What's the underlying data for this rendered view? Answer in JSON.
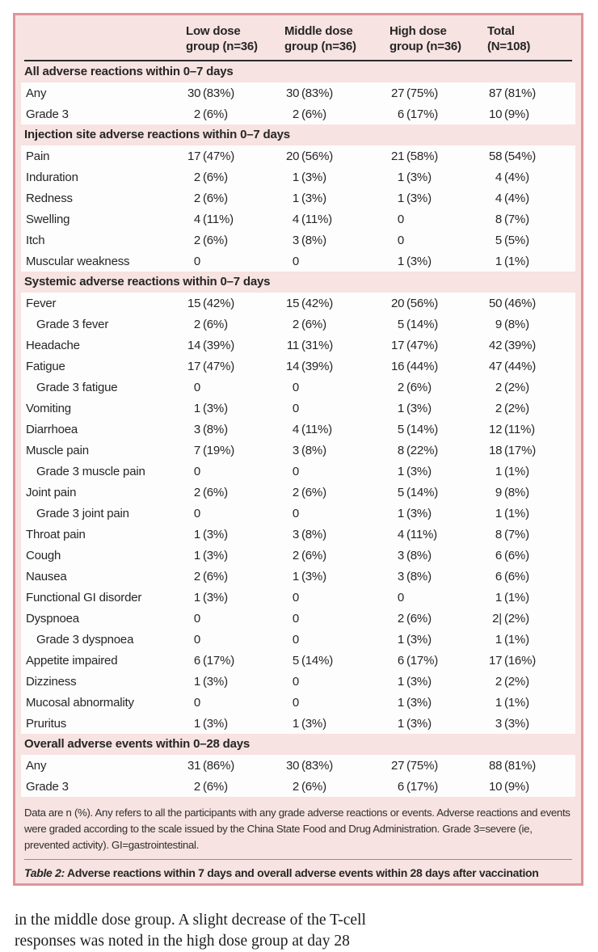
{
  "table": {
    "border_color": "#df949b",
    "bg_color": "#f7e3e1",
    "row_bg": "#fdfdfd",
    "header": {
      "cols": [
        {
          "line1": "Low dose",
          "line2": "group (n=36)"
        },
        {
          "line1": "Middle dose",
          "line2": "group (n=36)"
        },
        {
          "line1": "High dose",
          "line2": "group (n=36)"
        },
        {
          "line1": "Total",
          "line2": "(N=108)"
        }
      ]
    },
    "sections": [
      {
        "title": "All adverse reactions within 0–7 days",
        "rows": [
          {
            "label": "Any",
            "indent": false,
            "values": [
              "30 (83%)",
              "30 (83%)",
              "27 (75%)",
              "87 (81%)"
            ]
          },
          {
            "label": "Grade 3",
            "indent": false,
            "values": [
              "2 (6%)",
              "2 (6%)",
              "6 (17%)",
              "10 (9%)"
            ]
          }
        ]
      },
      {
        "title": "Injection site adverse reactions within 0–7 days",
        "rows": [
          {
            "label": "Pain",
            "indent": false,
            "values": [
              "17 (47%)",
              "20 (56%)",
              "21 (58%)",
              "58 (54%)"
            ]
          },
          {
            "label": "Induration",
            "indent": false,
            "values": [
              "2 (6%)",
              "1 (3%)",
              "1 (3%)",
              "4 (4%)"
            ]
          },
          {
            "label": "Redness",
            "indent": false,
            "values": [
              "2 (6%)",
              "1 (3%)",
              "1 (3%)",
              "4 (4%)"
            ]
          },
          {
            "label": "Swelling",
            "indent": false,
            "values": [
              "4 (11%)",
              "4 (11%)",
              "0",
              "8 (7%)"
            ]
          },
          {
            "label": "Itch",
            "indent": false,
            "values": [
              "2 (6%)",
              "3 (8%)",
              "0",
              "5 (5%)"
            ]
          },
          {
            "label": "Muscular weakness",
            "indent": false,
            "values": [
              "0",
              "0",
              "1 (3%)",
              "1 (1%)"
            ]
          }
        ]
      },
      {
        "title": "Systemic adverse reactions within 0–7 days",
        "rows": [
          {
            "label": "Fever",
            "indent": false,
            "values": [
              "15 (42%)",
              "15 (42%)",
              "20 (56%)",
              "50 (46%)"
            ]
          },
          {
            "label": "Grade 3 fever",
            "indent": true,
            "values": [
              "2 (6%)",
              "2 (6%)",
              "5 (14%)",
              "9 (8%)"
            ]
          },
          {
            "label": "Headache",
            "indent": false,
            "values": [
              "14 (39%)",
              "11 (31%)",
              "17 (47%)",
              "42 (39%)"
            ]
          },
          {
            "label": "Fatigue",
            "indent": false,
            "values": [
              "17 (47%)",
              "14 (39%)",
              "16 (44%)",
              "47 (44%)"
            ]
          },
          {
            "label": "Grade 3 fatigue",
            "indent": true,
            "values": [
              "0",
              "0",
              "2 (6%)",
              "2 (2%)"
            ]
          },
          {
            "label": "Vomiting",
            "indent": false,
            "values": [
              "1 (3%)",
              "0",
              "1 (3%)",
              "2 (2%)"
            ]
          },
          {
            "label": "Diarrhoea",
            "indent": false,
            "values": [
              "3 (8%)",
              "4 (11%)",
              "5 (14%)",
              "12 (11%)"
            ]
          },
          {
            "label": "Muscle pain",
            "indent": false,
            "values": [
              "7 (19%)",
              "3 (8%)",
              "8 (22%)",
              "18 (17%)"
            ]
          },
          {
            "label": "Grade 3 muscle pain",
            "indent": true,
            "values": [
              "0",
              "0",
              "1 (3%)",
              "1 (1%)"
            ]
          },
          {
            "label": "Joint pain",
            "indent": false,
            "values": [
              "2 (6%)",
              "2 (6%)",
              "5 (14%)",
              "9 (8%)"
            ]
          },
          {
            "label": "Grade 3 joint pain",
            "indent": true,
            "values": [
              "0",
              "0",
              "1 (3%)",
              "1 (1%)"
            ]
          },
          {
            "label": "Throat pain",
            "indent": false,
            "values": [
              "1 (3%)",
              "3 (8%)",
              "4 (11%)",
              "8 (7%)"
            ]
          },
          {
            "label": "Cough",
            "indent": false,
            "values": [
              "1 (3%)",
              "2 (6%)",
              "3 (8%)",
              "6 (6%)"
            ]
          },
          {
            "label": "Nausea",
            "indent": false,
            "values": [
              "2 (6%)",
              "1 (3%)",
              "3 (8%)",
              "6 (6%)"
            ]
          },
          {
            "label": "Functional GI disorder",
            "indent": false,
            "values": [
              "1 (3%)",
              "0",
              "0",
              "1 (1%)"
            ]
          },
          {
            "label": "Dyspnoea",
            "indent": false,
            "values": [
              "0",
              "0",
              "2 (6%)",
              "2|(2%)"
            ]
          },
          {
            "label": "Grade 3 dyspnoea",
            "indent": true,
            "values": [
              "0",
              "0",
              "1 (3%)",
              "1 (1%)"
            ]
          },
          {
            "label": "Appetite impaired",
            "indent": false,
            "values": [
              "6 (17%)",
              "5 (14%)",
              "6 (17%)",
              "17 (16%)"
            ]
          },
          {
            "label": "Dizziness",
            "indent": false,
            "values": [
              "1 (3%)",
              "0",
              "1 (3%)",
              "2 (2%)"
            ]
          },
          {
            "label": "Mucosal abnormality",
            "indent": false,
            "values": [
              "0",
              "0",
              "1 (3%)",
              "1 (1%)"
            ]
          },
          {
            "label": "Pruritus",
            "indent": false,
            "values": [
              "1 (3%)",
              "1 (3%)",
              "1 (3%)",
              "3 (3%)"
            ]
          }
        ]
      },
      {
        "title": "Overall adverse events within 0–28 days",
        "rows": [
          {
            "label": "Any",
            "indent": false,
            "values": [
              "31 (86%)",
              "30 (83%)",
              "27 (75%)",
              "88 (81%)"
            ]
          },
          {
            "label": "Grade 3",
            "indent": false,
            "values": [
              "2 (6%)",
              "2 (6%)",
              "6 (17%)",
              "10 (9%)"
            ]
          }
        ]
      }
    ],
    "footnote": "Data are n (%). Any refers to all the participants with any grade adverse reactions or events. Adverse reactions and events were graded according to the scale issued by the China State Food and Drug Administration. Grade 3=severe (ie, prevented activity). GI=gastrointestinal.",
    "caption_label": "Table 2:",
    "caption_text": " Adverse reactions within 7 days and overall adverse events within 28 days after vaccination"
  },
  "body_text": {
    "line1": "in the middle dose group. A slight decrease of the T-cell",
    "partial_line": "responses was noted in the high dose group at day 28"
  }
}
